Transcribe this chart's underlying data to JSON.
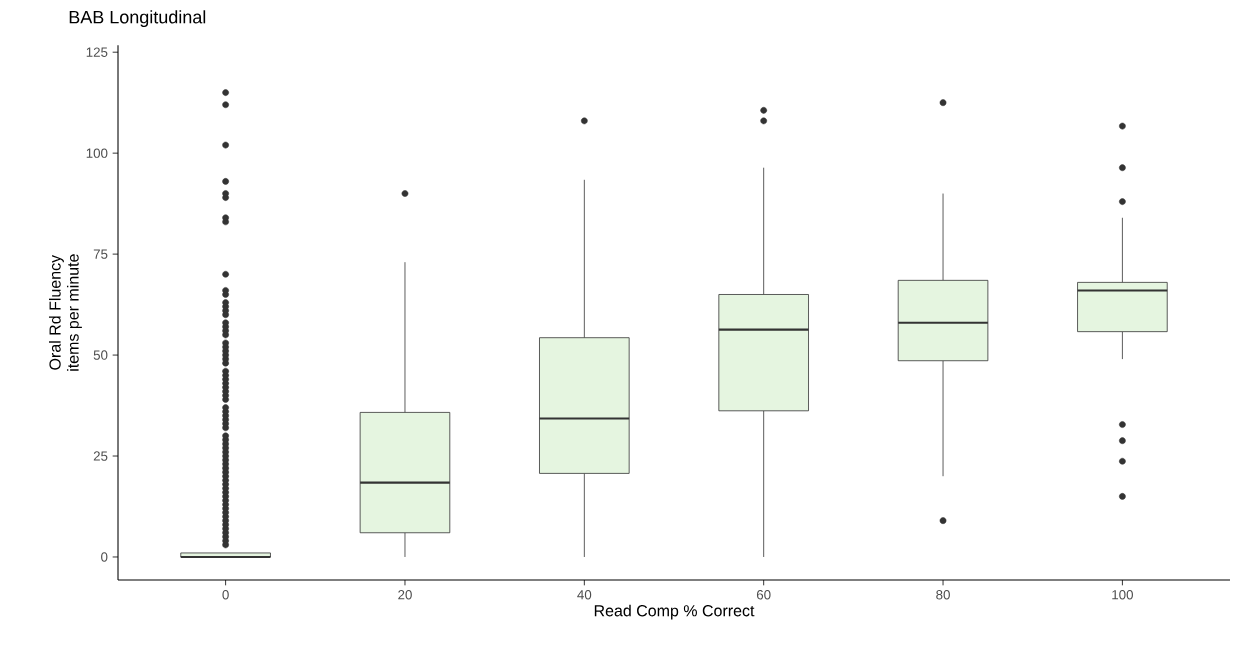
{
  "chart_data": {
    "type": "box",
    "title": "BAB Longitudinal",
    "xlabel": "Read Comp % Correct",
    "ylabel": "Oral Rd Fluency items per minute",
    "categories": [
      "0",
      "20",
      "40",
      "60",
      "80",
      "100"
    ],
    "color": "#e5f5e0",
    "marker": "circle",
    "ylim": [
      -5.7,
      126.7
    ],
    "yticks": [
      0,
      25,
      50,
      75,
      100,
      125
    ],
    "boxes": [
      {
        "low": 0,
        "q1": 0,
        "median": 0,
        "q3": 1,
        "high": 1,
        "outliers": [
          3,
          4,
          5,
          6,
          7,
          8,
          9,
          10,
          11,
          12,
          13,
          14,
          15,
          16,
          17,
          18,
          19,
          20,
          21,
          22,
          23,
          24,
          25,
          26,
          27,
          28,
          29,
          30,
          32,
          33,
          34,
          35,
          36,
          37,
          39,
          40,
          41,
          42,
          43,
          44,
          45,
          46,
          48,
          49,
          50,
          51,
          52,
          53,
          55,
          56,
          57,
          58,
          60,
          61,
          62,
          63,
          65,
          66,
          70,
          83,
          84,
          89,
          90,
          93,
          102,
          112,
          115
        ]
      },
      {
        "low": 0,
        "q1": 6,
        "median": 18.4,
        "q3": 35.8,
        "high": 73,
        "outliers": [
          90
        ]
      },
      {
        "low": 0,
        "q1": 20.7,
        "median": 34.3,
        "q3": 54.3,
        "high": 93.4,
        "outliers": [
          108
        ]
      },
      {
        "low": 0,
        "q1": 36.2,
        "median": 56.3,
        "q3": 65,
        "high": 96.4,
        "outliers": [
          108,
          110.6
        ]
      },
      {
        "low": 20,
        "q1": 48.6,
        "median": 58,
        "q3": 68.5,
        "high": 90,
        "outliers": [
          9,
          112.5
        ]
      },
      {
        "low": 49,
        "q1": 55.8,
        "median": 66,
        "q3": 68,
        "high": 84,
        "outliers": [
          15,
          23.7,
          28.8,
          32.8,
          88,
          96.4,
          106.7
        ]
      }
    ]
  }
}
